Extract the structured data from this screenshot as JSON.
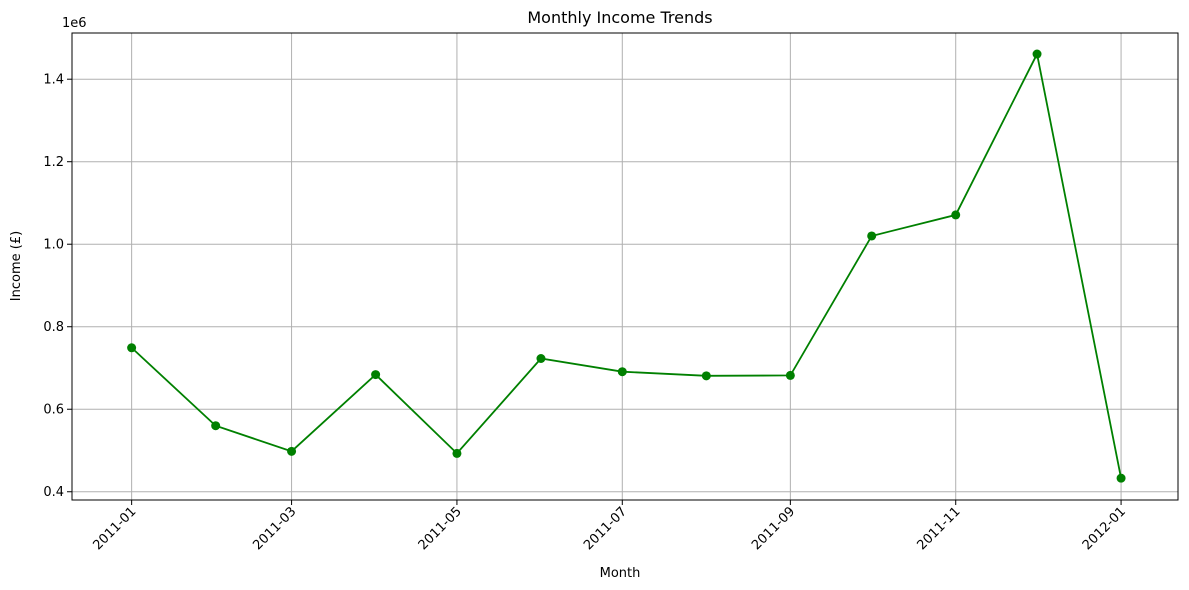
{
  "chart_data": {
    "type": "line",
    "title": "Monthly Income Trends",
    "xlabel": "Month",
    "ylabel": "Income (£)",
    "y_offset_label": "1e6",
    "x": [
      "2011-01-01",
      "2011-02-01",
      "2011-03-01",
      "2011-04-01",
      "2011-05-01",
      "2011-06-01",
      "2011-07-01",
      "2011-08-01",
      "2011-09-01",
      "2011-10-01",
      "2011-11-01",
      "2011-12-01",
      "2012-01-01"
    ],
    "series": [
      {
        "values": [
          749000,
          560000,
          498000,
          684000,
          493000,
          723000,
          691000,
          681000,
          682000,
          1020000,
          1071000,
          1461000,
          433000
        ],
        "color": "#008000",
        "marker": "circle"
      }
    ],
    "xlim": [
      "2010-12-10",
      "2012-01-22"
    ],
    "ylim": [
      380000,
      1512000
    ],
    "x_ticks": [
      "2011-01",
      "2011-03",
      "2011-05",
      "2011-07",
      "2011-09",
      "2011-11",
      "2012-01"
    ],
    "y_ticks": [
      {
        "value": 400000,
        "label": "0.4"
      },
      {
        "value": 600000,
        "label": "0.6"
      },
      {
        "value": 800000,
        "label": "0.8"
      },
      {
        "value": 1000000,
        "label": "1.0"
      },
      {
        "value": 1200000,
        "label": "1.2"
      },
      {
        "value": 1400000,
        "label": "1.4"
      }
    ],
    "grid": true,
    "x_tick_rotation": 45
  }
}
